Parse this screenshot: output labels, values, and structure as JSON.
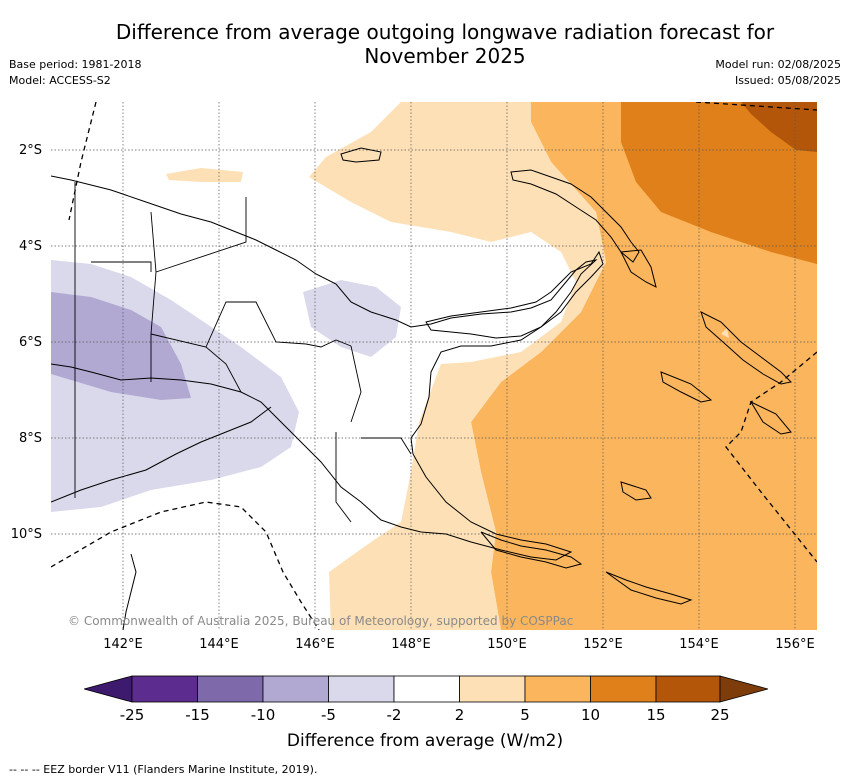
{
  "title": {
    "line1": "Difference from average outgoing longwave radiation forecast for",
    "line2": "November 2025"
  },
  "meta_left": {
    "base_period": "Base period: 1981-2018",
    "model": "Model: ACCESS-S2"
  },
  "meta_right": {
    "model_run": "Model run: 02/08/2025",
    "issued": "Issued: 05/08/2025"
  },
  "map": {
    "lat_labels": [
      "2°S",
      "4°S",
      "6°S",
      "8°S",
      "10°S"
    ],
    "lon_labels": [
      "142°E",
      "144°E",
      "146°E",
      "148°E",
      "150°E",
      "152°E",
      "154°E",
      "156°E"
    ],
    "copyright": "© Commonwealth of Australia 2025, Bureau of Meteorology, supported by COSPPac"
  },
  "colorbar": {
    "ticks": [
      "-25",
      "-15",
      "-10",
      "-5",
      "-2",
      "2",
      "5",
      "10",
      "15",
      "25"
    ],
    "colors": [
      "#3d1a6e",
      "#5c2d8f",
      "#7e6aaa",
      "#b1a9d2",
      "#d9d9eb",
      "#ffffff",
      "#fde0b6",
      "#fbb55c",
      "#e0801a",
      "#b3560a",
      "#7e3c0a"
    ],
    "label": "Difference from average (W/m2)"
  },
  "eez_note": "-- -- -- EEZ border V11 (Flanders Marine Institute, 2019)."
}
